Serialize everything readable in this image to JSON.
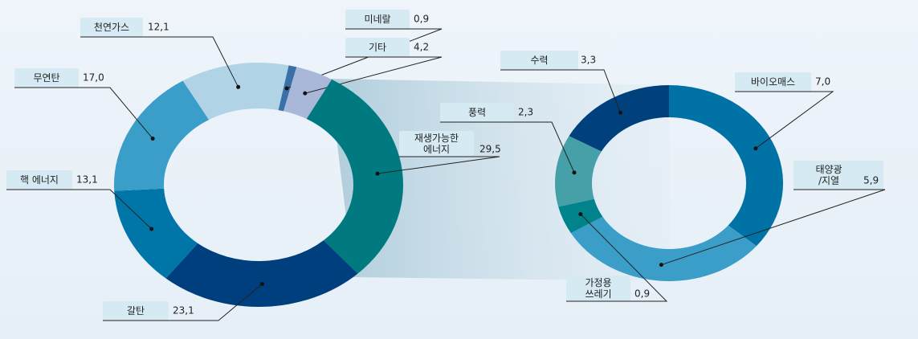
{
  "chart_data": [
    {
      "type": "donut",
      "categories": [
        "미네랄",
        "기타",
        "재생가능한\n에너지",
        "갈탄",
        "핵 에너지",
        "무연탄",
        "천연가스"
      ],
      "values": [
        0.9,
        4.2,
        29.5,
        23.1,
        13.1,
        17.0,
        12.1
      ],
      "value_labels": [
        "0,9",
        "4,2",
        "29,5",
        "23,1",
        "13,1",
        "17,0",
        "12,1"
      ],
      "colors": [
        "#3a6fa8",
        "#a9b8d8",
        "#007a80",
        "#003f7d",
        "#0076a8",
        "#3a9ec8",
        "#b0d4e6"
      ]
    },
    {
      "type": "donut",
      "categories": [
        "바이오매스",
        "태양광\n/지열",
        "가정용\n쓰레기",
        "풍력",
        "수력"
      ],
      "values": [
        7.0,
        5.9,
        0.9,
        2.3,
        3.3
      ],
      "value_labels": [
        "7,0",
        "5,9",
        "0,9",
        "2,3",
        "3,3"
      ],
      "colors": [
        "#0072a6",
        "#3a9ec8",
        "#00838a",
        "#45a0a8",
        "#00407d"
      ]
    }
  ]
}
